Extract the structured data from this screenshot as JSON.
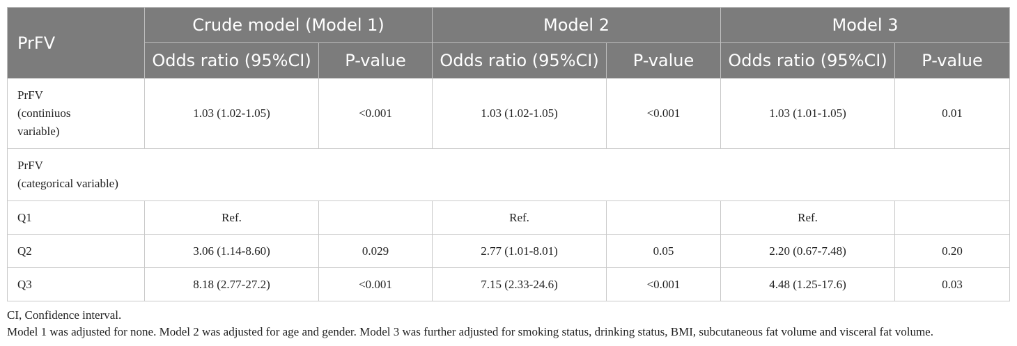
{
  "header": {
    "row_label": "PrFV",
    "groups": [
      "Crude model (Model 1)",
      "Model 2",
      "Model 3"
    ],
    "sub_odds": "Odds ratio (95%CI)",
    "sub_p": "P-value"
  },
  "rows": [
    {
      "label_lines": [
        "PrFV",
        "(continiuos",
        "variable)"
      ],
      "cells": [
        "1.03 (1.02-1.05)",
        "<0.001",
        "1.03 (1.02-1.05)",
        "<0.001",
        "1.03 (1.01-1.05)",
        "0.01"
      ]
    },
    {
      "label_lines": [
        "PrFV",
        "(categorical variable)"
      ]
    },
    {
      "label_lines": [
        "Q1"
      ],
      "cells": [
        "Ref.",
        "",
        "Ref.",
        "",
        "Ref.",
        ""
      ]
    },
    {
      "label_lines": [
        "Q2"
      ],
      "cells": [
        "3.06 (1.14-8.60)",
        "0.029",
        "2.77 (1.01-8.01)",
        "0.05",
        "2.20 (0.67-7.48)",
        "0.20"
      ]
    },
    {
      "label_lines": [
        "Q3"
      ],
      "cells": [
        "8.18 (2.77-27.2)",
        "<0.001",
        "7.15 (2.33-24.6)",
        "<0.001",
        "4.48 (1.25-17.6)",
        "0.03"
      ]
    }
  ],
  "footnotes": [
    "CI, Confidence interval.",
    "Model 1 was adjusted for none. Model 2 was adjusted for age and gender. Model 3 was further adjusted for smoking status, drinking status, BMI, subcutaneous fat volume and visceral fat volume."
  ]
}
